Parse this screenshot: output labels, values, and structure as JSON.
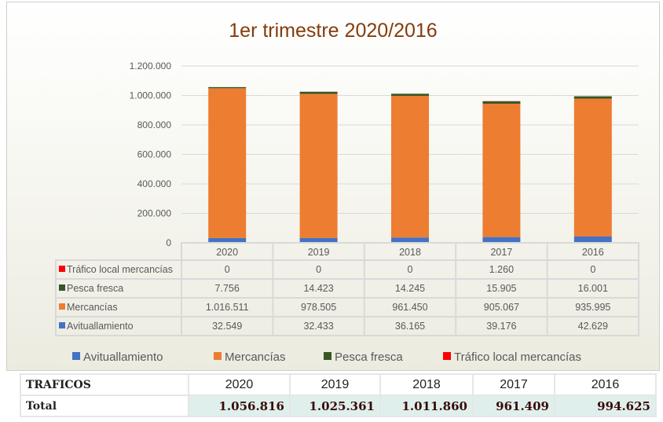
{
  "chart_data": {
    "type": "stacked-bar",
    "title": "1er trimestre 2020/2016",
    "categories": [
      "2020",
      "2019",
      "2018",
      "2017",
      "2016"
    ],
    "ylim": [
      0,
      1200000
    ],
    "yticks": [
      "0",
      "200.000",
      "400.000",
      "600.000",
      "800.000",
      "1.000.000",
      "1.200.000"
    ],
    "ytick_values": [
      0,
      200000,
      400000,
      600000,
      800000,
      1000000,
      1200000
    ],
    "grid": true,
    "legend_position": "bottom",
    "series": [
      {
        "name": "Avituallamiento",
        "color": "#4472c4",
        "values": [
          32549,
          32433,
          36165,
          39176,
          42629
        ],
        "labels": [
          "32.549",
          "32.433",
          "36.165",
          "39.176",
          "42.629"
        ]
      },
      {
        "name": "Mercancías",
        "color": "#ed7d31",
        "values": [
          1016511,
          978505,
          961450,
          905067,
          935995
        ],
        "labels": [
          "1.016.511",
          "978.505",
          "961.450",
          "905.067",
          "935.995"
        ]
      },
      {
        "name": "Pesca fresca",
        "color": "#375623",
        "values": [
          7756,
          14423,
          14245,
          15905,
          16001
        ],
        "labels": [
          "7.756",
          "14.423",
          "14.245",
          "15.905",
          "16.001"
        ]
      },
      {
        "name": "Tráfico local mercancías",
        "color": "#ff0000",
        "values": [
          0,
          0,
          0,
          1260,
          0
        ],
        "labels": [
          "0",
          "0",
          "0",
          "1.260",
          "0"
        ]
      }
    ]
  },
  "totals": {
    "header": "TRAFICOS",
    "row_label": "Total",
    "years": [
      "2020",
      "2019",
      "2018",
      "2017",
      "2016"
    ],
    "values": [
      "1.056.816",
      "1.025.361",
      "1.011.860",
      "961.409",
      "994.625"
    ]
  }
}
